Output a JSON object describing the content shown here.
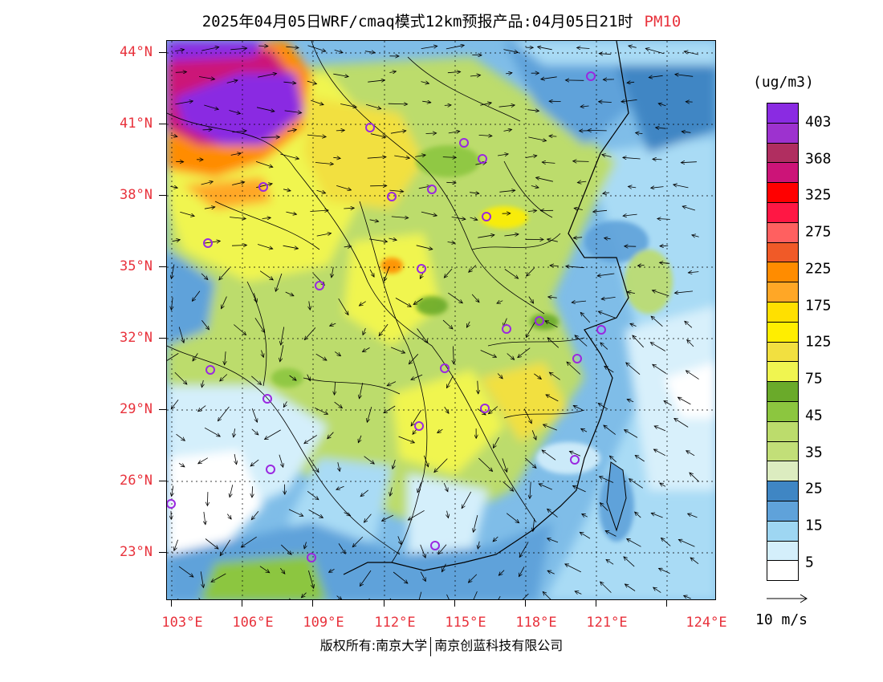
{
  "title": {
    "main": "2025年04月05日WRF/cmaq模式12km预报产品:04月05日21时",
    "pollutant": "PM10"
  },
  "axes": {
    "lat_labels": [
      "44°N",
      "41°N",
      "38°N",
      "35°N",
      "32°N",
      "29°N",
      "26°N",
      "23°N"
    ],
    "lon_labels": [
      "103°E",
      "106°E",
      "109°E",
      "112°E",
      "115°E",
      "118°E",
      "121°E",
      "124°E"
    ]
  },
  "legend": {
    "unit": "(ug/m3)",
    "colors": [
      "#8a2be2",
      "#9d32cf",
      "#b02e60",
      "#cc1478",
      "#ff0000",
      "#ff1744",
      "#ff6060",
      "#f05a28",
      "#ff8c00",
      "#ffa726",
      "#ffe000",
      "#ffee00",
      "#f2e040",
      "#f0f550",
      "#6aaa2a",
      "#8cc63f",
      "#bcdc6c",
      "#c2df78",
      "#dcecc0",
      "#3f86c4",
      "#5fa2da",
      "#9ed6f2",
      "#d4effb",
      "#ffffff"
    ],
    "labels": [
      "403",
      "368",
      "325",
      "275",
      "225",
      "175",
      "125",
      "75",
      "45",
      "35",
      "25",
      "15",
      "5"
    ],
    "wind_scale": "10 m/s"
  },
  "copyright": {
    "left": "版权所有:南京大学",
    "right": "南京创蓝科技有限公司"
  }
}
